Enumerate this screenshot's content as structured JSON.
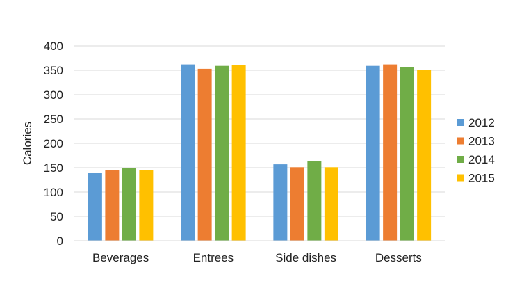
{
  "chart_data": {
    "type": "bar",
    "title": "",
    "xlabel": "",
    "ylabel": "Calories",
    "ylim": [
      0,
      400
    ],
    "yticks": [
      0,
      50,
      100,
      150,
      200,
      250,
      300,
      350,
      400
    ],
    "grid": true,
    "legend_position": "right",
    "categories": [
      "Beverages",
      "Entrees",
      "Side dishes",
      "Desserts"
    ],
    "series": [
      {
        "name": "2012",
        "color": "#5B9BD5",
        "values": [
          140,
          362,
          157,
          359
        ]
      },
      {
        "name": "2013",
        "color": "#ED7D31",
        "values": [
          145,
          353,
          151,
          362
        ]
      },
      {
        "name": "2014",
        "color": "#70AD47",
        "values": [
          150,
          359,
          163,
          357
        ]
      },
      {
        "name": "2015",
        "color": "#FFC000",
        "values": [
          145,
          361,
          151,
          350
        ]
      }
    ]
  }
}
